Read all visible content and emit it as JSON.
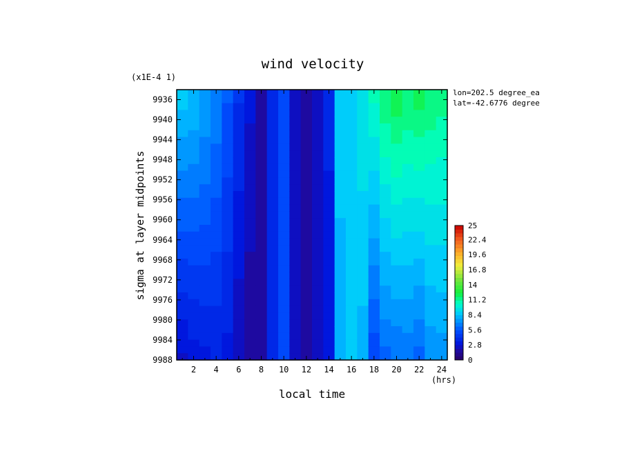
{
  "chart_data": {
    "type": "heatmap",
    "title": "wind velocity",
    "y_scale_note": "(x1E-4 1)",
    "xlabel": "local time",
    "x_units": "(hrs)",
    "ylabel": "sigma at layer midpoints",
    "info_lines": [
      "lon=202.5 degree_ea",
      "lat=-42.6776 degree"
    ],
    "x_range": [
      0.5,
      24.5
    ],
    "x_ticks": [
      2,
      4,
      6,
      8,
      10,
      12,
      14,
      16,
      18,
      20,
      22,
      24
    ],
    "y_range": [
      9934,
      9988
    ],
    "y_ticks": [
      9936,
      9940,
      9944,
      9948,
      9952,
      9956,
      9960,
      9964,
      9968,
      9972,
      9976,
      9980,
      9984,
      9988
    ],
    "colorbar": {
      "min": 0,
      "max": 25,
      "tick_values": [
        0,
        2.8,
        5.6,
        8.4,
        11.2,
        14,
        16.8,
        19.6,
        22.4,
        25
      ],
      "tick_labels": [
        "0",
        "2.8",
        "5.6",
        "8.4",
        "11.2",
        "14",
        "16.8",
        "19.6",
        "22.4",
        "25"
      ]
    },
    "x": [
      1,
      2,
      3,
      4,
      5,
      6,
      7,
      8,
      9,
      10,
      11,
      12,
      13,
      14,
      15,
      16,
      17,
      18,
      19,
      20,
      21,
      22,
      23,
      24
    ],
    "y": [
      9936,
      9988
    ],
    "values": [
      [
        8.5,
        8.2,
        7.6,
        6.8,
        5.6,
        4.2,
        2.9,
        2.0,
        4.0,
        5.0,
        2.7,
        1.8,
        2.3,
        3.5,
        8.6,
        9.0,
        9.6,
        10.5,
        11.6,
        12.2,
        11.8,
        12.0,
        11.6,
        11.4
      ],
      [
        2.6,
        3.0,
        3.3,
        3.5,
        3.2,
        2.1,
        1.5,
        1.9,
        4.0,
        5.0,
        2.7,
        1.8,
        2.3,
        3.4,
        8.0,
        9.0,
        8.0,
        5.0,
        6.0,
        6.2,
        6.4,
        6.0,
        7.0,
        7.2
      ]
    ]
  }
}
